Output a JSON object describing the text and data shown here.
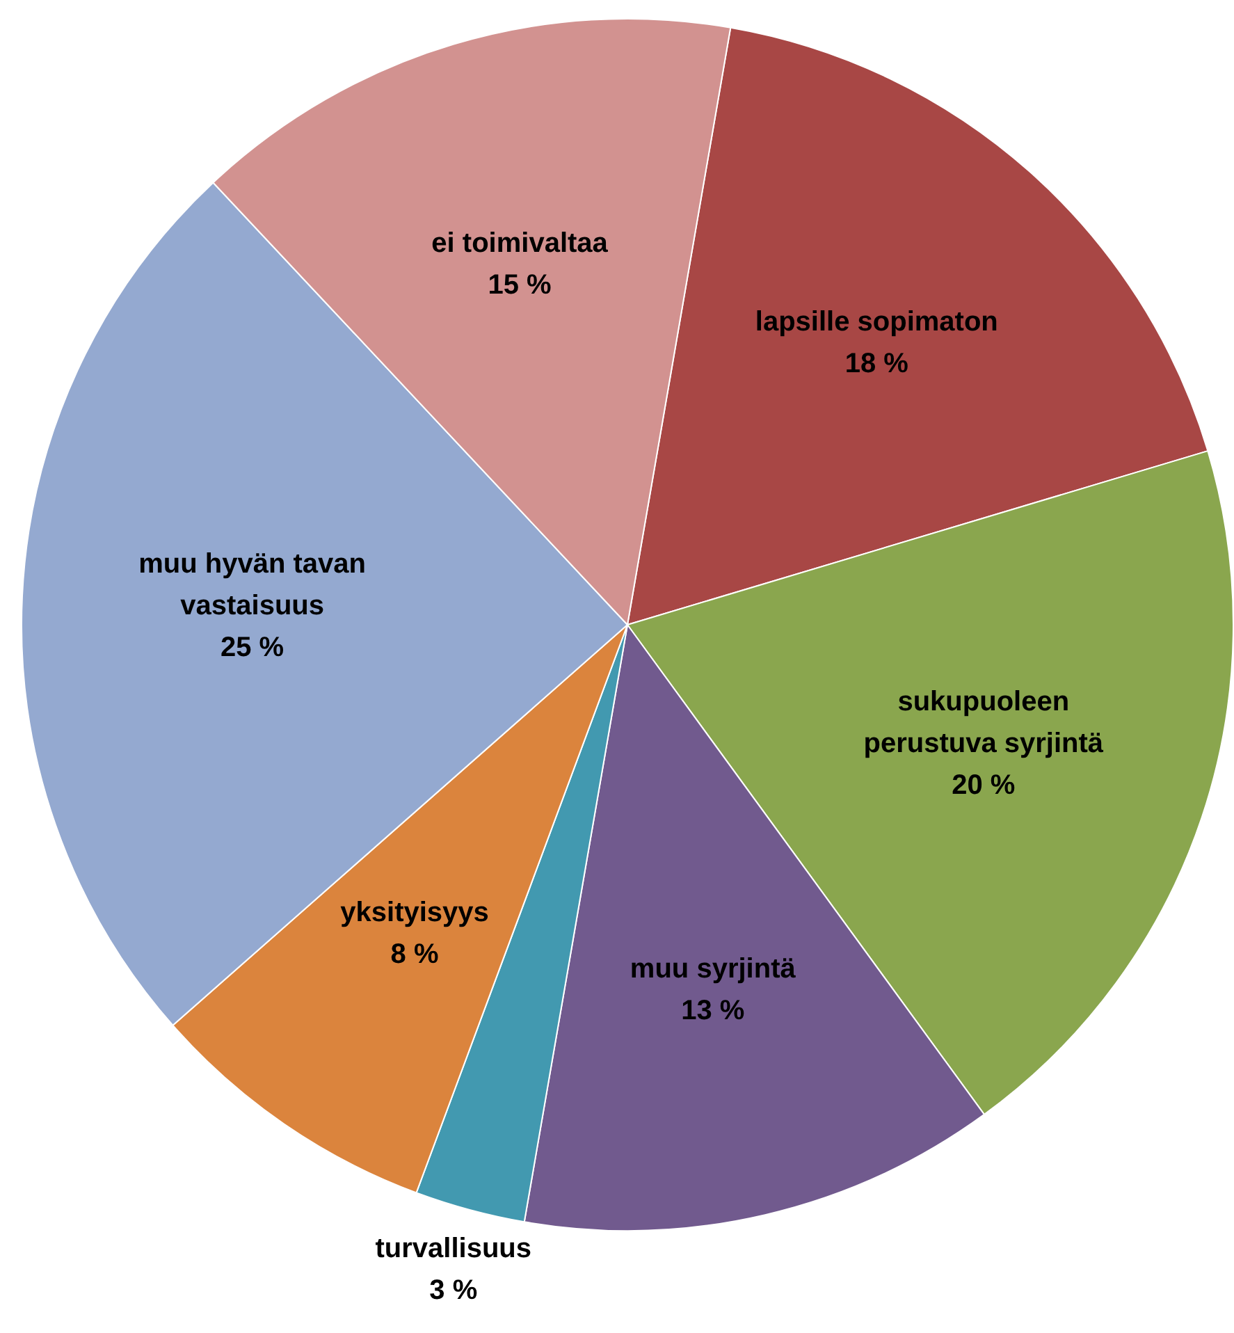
{
  "chart_data": {
    "type": "pie",
    "categories": [
      "lapsille sopimaton",
      "sukupuoleen perustuva syrjintä",
      "muu syrjintä",
      "turvallisuus",
      "yksityisyys",
      "muu hyvän tavan vastaisuus",
      "ei toimivaltaa"
    ],
    "values": [
      18,
      20,
      13,
      3,
      8,
      25,
      15
    ],
    "value_labels": [
      "18 %",
      "20 %",
      "13 %",
      "3 %",
      "8 %",
      "25 %",
      "15 %"
    ],
    "colors": [
      "#a84745",
      "#8aa64e",
      "#715a8e",
      "#4299b0",
      "#db843d",
      "#94a9d0",
      "#d29290"
    ],
    "legend": false
  }
}
